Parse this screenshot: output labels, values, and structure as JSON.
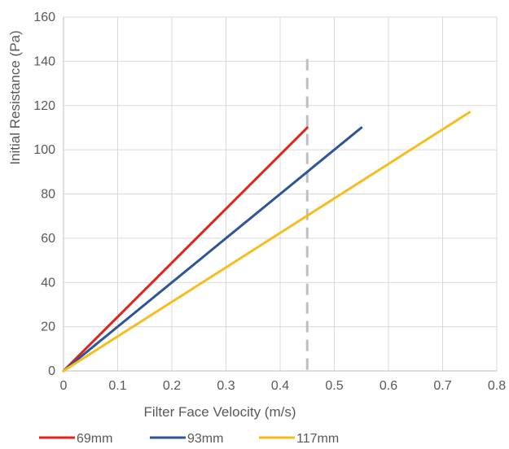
{
  "chart_data": {
    "type": "line",
    "xlabel": "Filter Face Velocity (m/s)",
    "ylabel": "Initial Resistance (Pa)",
    "xlim": [
      0,
      0.8
    ],
    "ylim": [
      0,
      160
    ],
    "xticks": [
      0,
      0.1,
      0.2,
      0.3,
      0.4,
      0.5,
      0.6,
      0.7,
      0.8
    ],
    "yticks": [
      0,
      20,
      40,
      60,
      80,
      100,
      120,
      140,
      160
    ],
    "xtick_labels": [
      "0",
      "0.1",
      "0.2",
      "0.3",
      "0.4",
      "0.5",
      "0.6",
      "0.7",
      "0.8"
    ],
    "ytick_labels": [
      "0",
      "20",
      "40",
      "60",
      "80",
      "100",
      "120",
      "140",
      "160"
    ],
    "grid": true,
    "legend_position": "bottom",
    "series": [
      {
        "name": "69mm",
        "color": "#e2231a",
        "x": [
          0,
          0.45
        ],
        "y": [
          0,
          110
        ]
      },
      {
        "name": "93mm",
        "color": "#2e5597",
        "x": [
          0,
          0.55
        ],
        "y": [
          0,
          110
        ]
      },
      {
        "name": "117mm",
        "color": "#f5bd1f",
        "x": [
          0,
          0.75
        ],
        "y": [
          0,
          117
        ]
      }
    ],
    "reference_line": {
      "orientation": "vertical",
      "x": 0.45,
      "y_range": [
        0,
        141
      ],
      "style": "dashed",
      "color": "#bfbfbf"
    }
  }
}
